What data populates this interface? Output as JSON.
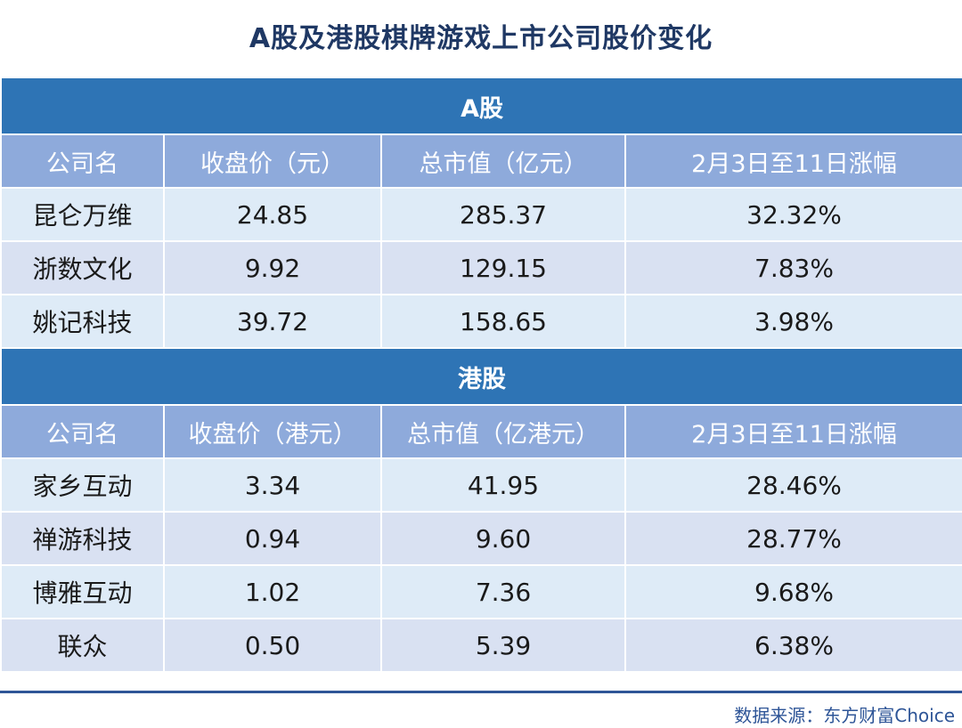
{
  "title": "A股及港股棋牌游戏上市公司股价变化",
  "chart_data": {
    "type": "table",
    "sections": [
      {
        "name": "A股",
        "columns": [
          "公司名",
          "收盘价（元）",
          "总市值（亿元）",
          "2月3日至11日涨幅"
        ],
        "rows": [
          [
            "昆仑万维",
            "24.85",
            "285.37",
            "32.32%"
          ],
          [
            "浙数文化",
            "9.92",
            "129.15",
            "7.83%"
          ],
          [
            "姚记科技",
            "39.72",
            "158.65",
            "3.98%"
          ]
        ]
      },
      {
        "name": "港股",
        "columns": [
          "公司名",
          "收盘价（港元）",
          "总市值（亿港元）",
          "2月3日至11日涨幅"
        ],
        "rows": [
          [
            "家乡互动",
            "3.34",
            "41.95",
            "28.46%"
          ],
          [
            "禅游科技",
            "0.94",
            "9.60",
            "28.77%"
          ],
          [
            "博雅互动",
            "1.02",
            "7.36",
            "9.68%"
          ],
          [
            "联众",
            "0.50",
            "5.39",
            "6.38%"
          ]
        ]
      }
    ]
  },
  "source": "数据来源：东方财富Choice",
  "colors": {
    "section_header": "#2e74b5",
    "column_header": "#8eaadb",
    "row_light": "#deebf7",
    "row_alt": "#d9e1f2",
    "title": "#1f3864"
  }
}
